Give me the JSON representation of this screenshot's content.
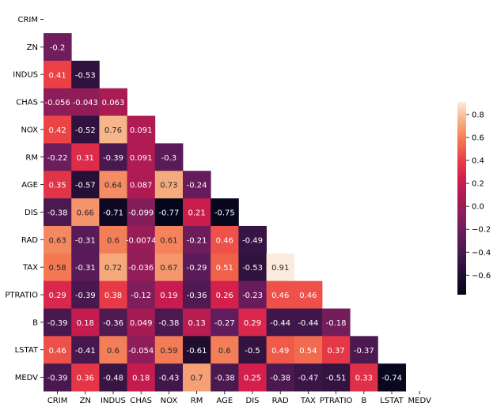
{
  "chart_data": {
    "type": "heatmap",
    "variant": "lower-triangle correlation matrix",
    "variables": [
      "CRIM",
      "ZN",
      "INDUS",
      "CHAS",
      "NOX",
      "RM",
      "AGE",
      "DIS",
      "RAD",
      "TAX",
      "PTRATIO",
      "B",
      "LSTAT",
      "MEDV"
    ],
    "values": [
      [],
      [
        "-0.2"
      ],
      [
        "0.41",
        "-0.53"
      ],
      [
        "-0.056",
        "-0.043",
        "0.063"
      ],
      [
        "0.42",
        "-0.52",
        "0.76",
        "0.091"
      ],
      [
        "-0.22",
        "0.31",
        "-0.39",
        "0.091",
        "-0.3"
      ],
      [
        "0.35",
        "-0.57",
        "0.64",
        "0.087",
        "0.73",
        "-0.24"
      ],
      [
        "-0.38",
        "0.66",
        "-0.71",
        "-0.099",
        "-0.77",
        "0.21",
        "-0.75"
      ],
      [
        "0.63",
        "-0.31",
        "0.6",
        "-0.0074",
        "0.61",
        "-0.21",
        "0.46",
        "-0.49"
      ],
      [
        "0.58",
        "-0.31",
        "0.72",
        "-0.036",
        "0.67",
        "-0.29",
        "0.51",
        "-0.53",
        "0.91"
      ],
      [
        "0.29",
        "-0.39",
        "0.38",
        "-0.12",
        "0.19",
        "-0.36",
        "0.26",
        "-0.23",
        "0.46",
        "0.46"
      ],
      [
        "-0.39",
        "0.18",
        "-0.36",
        "0.049",
        "-0.38",
        "0.13",
        "-0.27",
        "0.29",
        "-0.44",
        "-0.44",
        "-0.18"
      ],
      [
        "0.46",
        "-0.41",
        "0.6",
        "-0.054",
        "0.59",
        "-0.61",
        "0.6",
        "-0.5",
        "0.49",
        "0.54",
        "0.37",
        "-0.37"
      ],
      [
        "-0.39",
        "0.36",
        "-0.48",
        "0.18",
        "-0.43",
        "0.7",
        "-0.38",
        "0.25",
        "-0.38",
        "-0.47",
        "-0.51",
        "0.33",
        "-0.74"
      ]
    ],
    "colorbar": {
      "min": -0.77,
      "max": 0.91,
      "ticks": [
        "0.8",
        "0.6",
        "0.4",
        "0.2",
        "0.0",
        "−0.2",
        "−0.4",
        "−0.6"
      ],
      "tick_values": [
        0.8,
        0.6,
        0.4,
        0.2,
        0.0,
        -0.2,
        -0.4,
        -0.6
      ],
      "colormap": "rocket"
    },
    "grid": false,
    "legend": "right (colorbar)"
  }
}
